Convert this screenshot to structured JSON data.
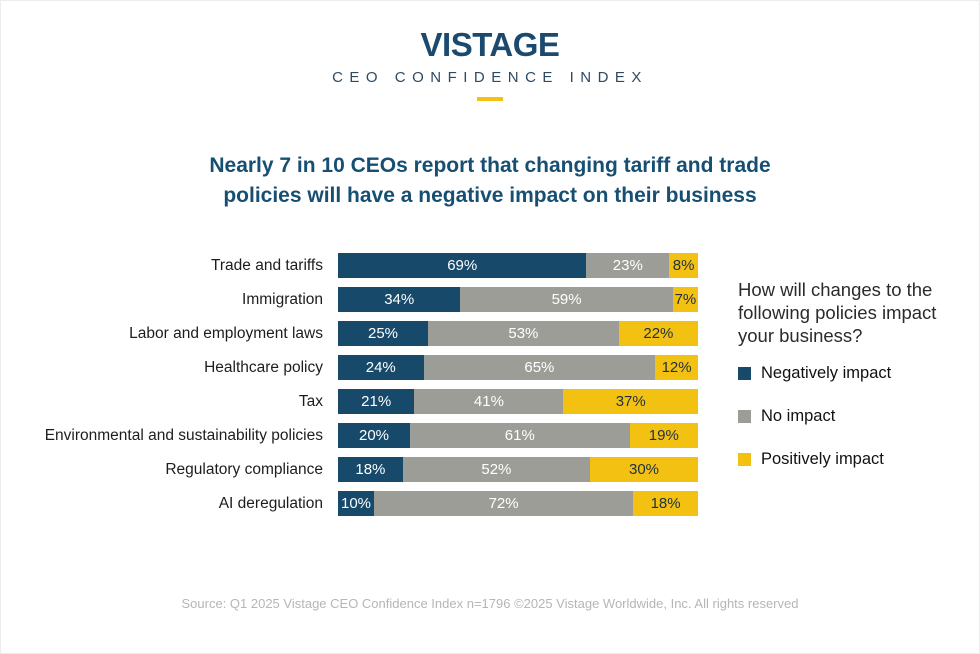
{
  "header": {
    "logo": "VISTAGE",
    "subtitle": "CEO CONFIDENCE INDEX"
  },
  "title": {
    "line1": "Nearly 7 in 10 CEOs report that changing tariff and trade",
    "line2": "policies will have a negative impact on their business"
  },
  "legend": {
    "question": "How will changes to the following policies impact your business?"
  },
  "chart_data": {
    "type": "bar",
    "orientation": "horizontal-stacked",
    "title": "Nearly 7 in 10 CEOs report that changing tariff and trade policies will have a negative impact on their business",
    "categories": [
      "Trade and tariffs",
      "Immigration",
      "Labor and employment laws",
      "Healthcare policy",
      "Tax",
      "Environmental and sustainability policies",
      "Regulatory compliance",
      "AI deregulation"
    ],
    "series": [
      {
        "name": "Negatively impact",
        "color": "#17496b",
        "label_color": "#ffffff",
        "values": [
          69,
          34,
          25,
          24,
          21,
          20,
          18,
          10
        ]
      },
      {
        "name": "No impact",
        "color": "#9d9d97",
        "label_color": "#ffffff",
        "values": [
          23,
          59,
          53,
          65,
          41,
          61,
          52,
          72
        ]
      },
      {
        "name": "Positively impact",
        "color": "#f2c112",
        "label_color": "#1f3043",
        "values": [
          8,
          7,
          22,
          12,
          37,
          19,
          30,
          18
        ]
      }
    ],
    "value_suffix": "%",
    "xlabel": "",
    "ylabel": "",
    "xlim": [
      0,
      100
    ],
    "grid": false,
    "legend_position": "right"
  },
  "colors": {
    "brand_navy": "#1b4a6e",
    "title_navy": "#174f73",
    "accent_yellow": "#f2c112",
    "neutral_gray": "#9d9d97"
  },
  "footer": {
    "source": "Source: Q1 2025 Vistage CEO Confidence Index n=1796 ©2025 Vistage Worldwide, Inc. All rights reserved"
  }
}
